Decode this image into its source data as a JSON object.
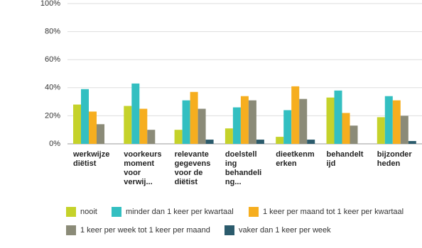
{
  "chart_data": {
    "type": "bar",
    "categories": [
      [
        "werkwijze",
        "diëtist"
      ],
      [
        "voorkeurs",
        "moment",
        "voor",
        "verwij..."
      ],
      [
        "relevante",
        "gegevens",
        "voor de",
        "diëtist"
      ],
      [
        "doelstell",
        "ing",
        "behandeli",
        "ng..."
      ],
      [
        "dieetkenm",
        "erken"
      ],
      [
        "behandelt",
        "ijd"
      ],
      [
        "bijzonder",
        "heden"
      ]
    ],
    "series": [
      {
        "name": "nooit",
        "color": "#c5d22a",
        "values": [
          28,
          27,
          10,
          11,
          5,
          33,
          19
        ]
      },
      {
        "name": "minder dan 1 keer per kwartaal",
        "color": "#33bfc1",
        "values": [
          39,
          43,
          31,
          26,
          24,
          38,
          34
        ]
      },
      {
        "name": "1 keer per maand tot 1 keer per kwartaal",
        "color": "#f6ae1f",
        "values": [
          23,
          25,
          37,
          34,
          41,
          22,
          31
        ]
      },
      {
        "name": "1 keer per week tot 1 keer per maand",
        "color": "#8b8b78",
        "values": [
          14,
          10,
          25,
          31,
          32,
          13,
          20
        ]
      },
      {
        "name": "vaker dan 1 keer per week",
        "color": "#2b5b6c",
        "values": [
          0,
          0,
          3,
          3,
          3,
          0,
          2
        ]
      }
    ],
    "ylim": [
      0,
      100
    ],
    "yticks": [
      {
        "value": 0,
        "label": "0%"
      },
      {
        "value": 20,
        "label": "20%"
      },
      {
        "value": 40,
        "label": "40%"
      },
      {
        "value": 60,
        "label": "60%"
      },
      {
        "value": 80,
        "label": "80%"
      },
      {
        "value": 100,
        "label": "100%"
      }
    ],
    "grid": true
  }
}
